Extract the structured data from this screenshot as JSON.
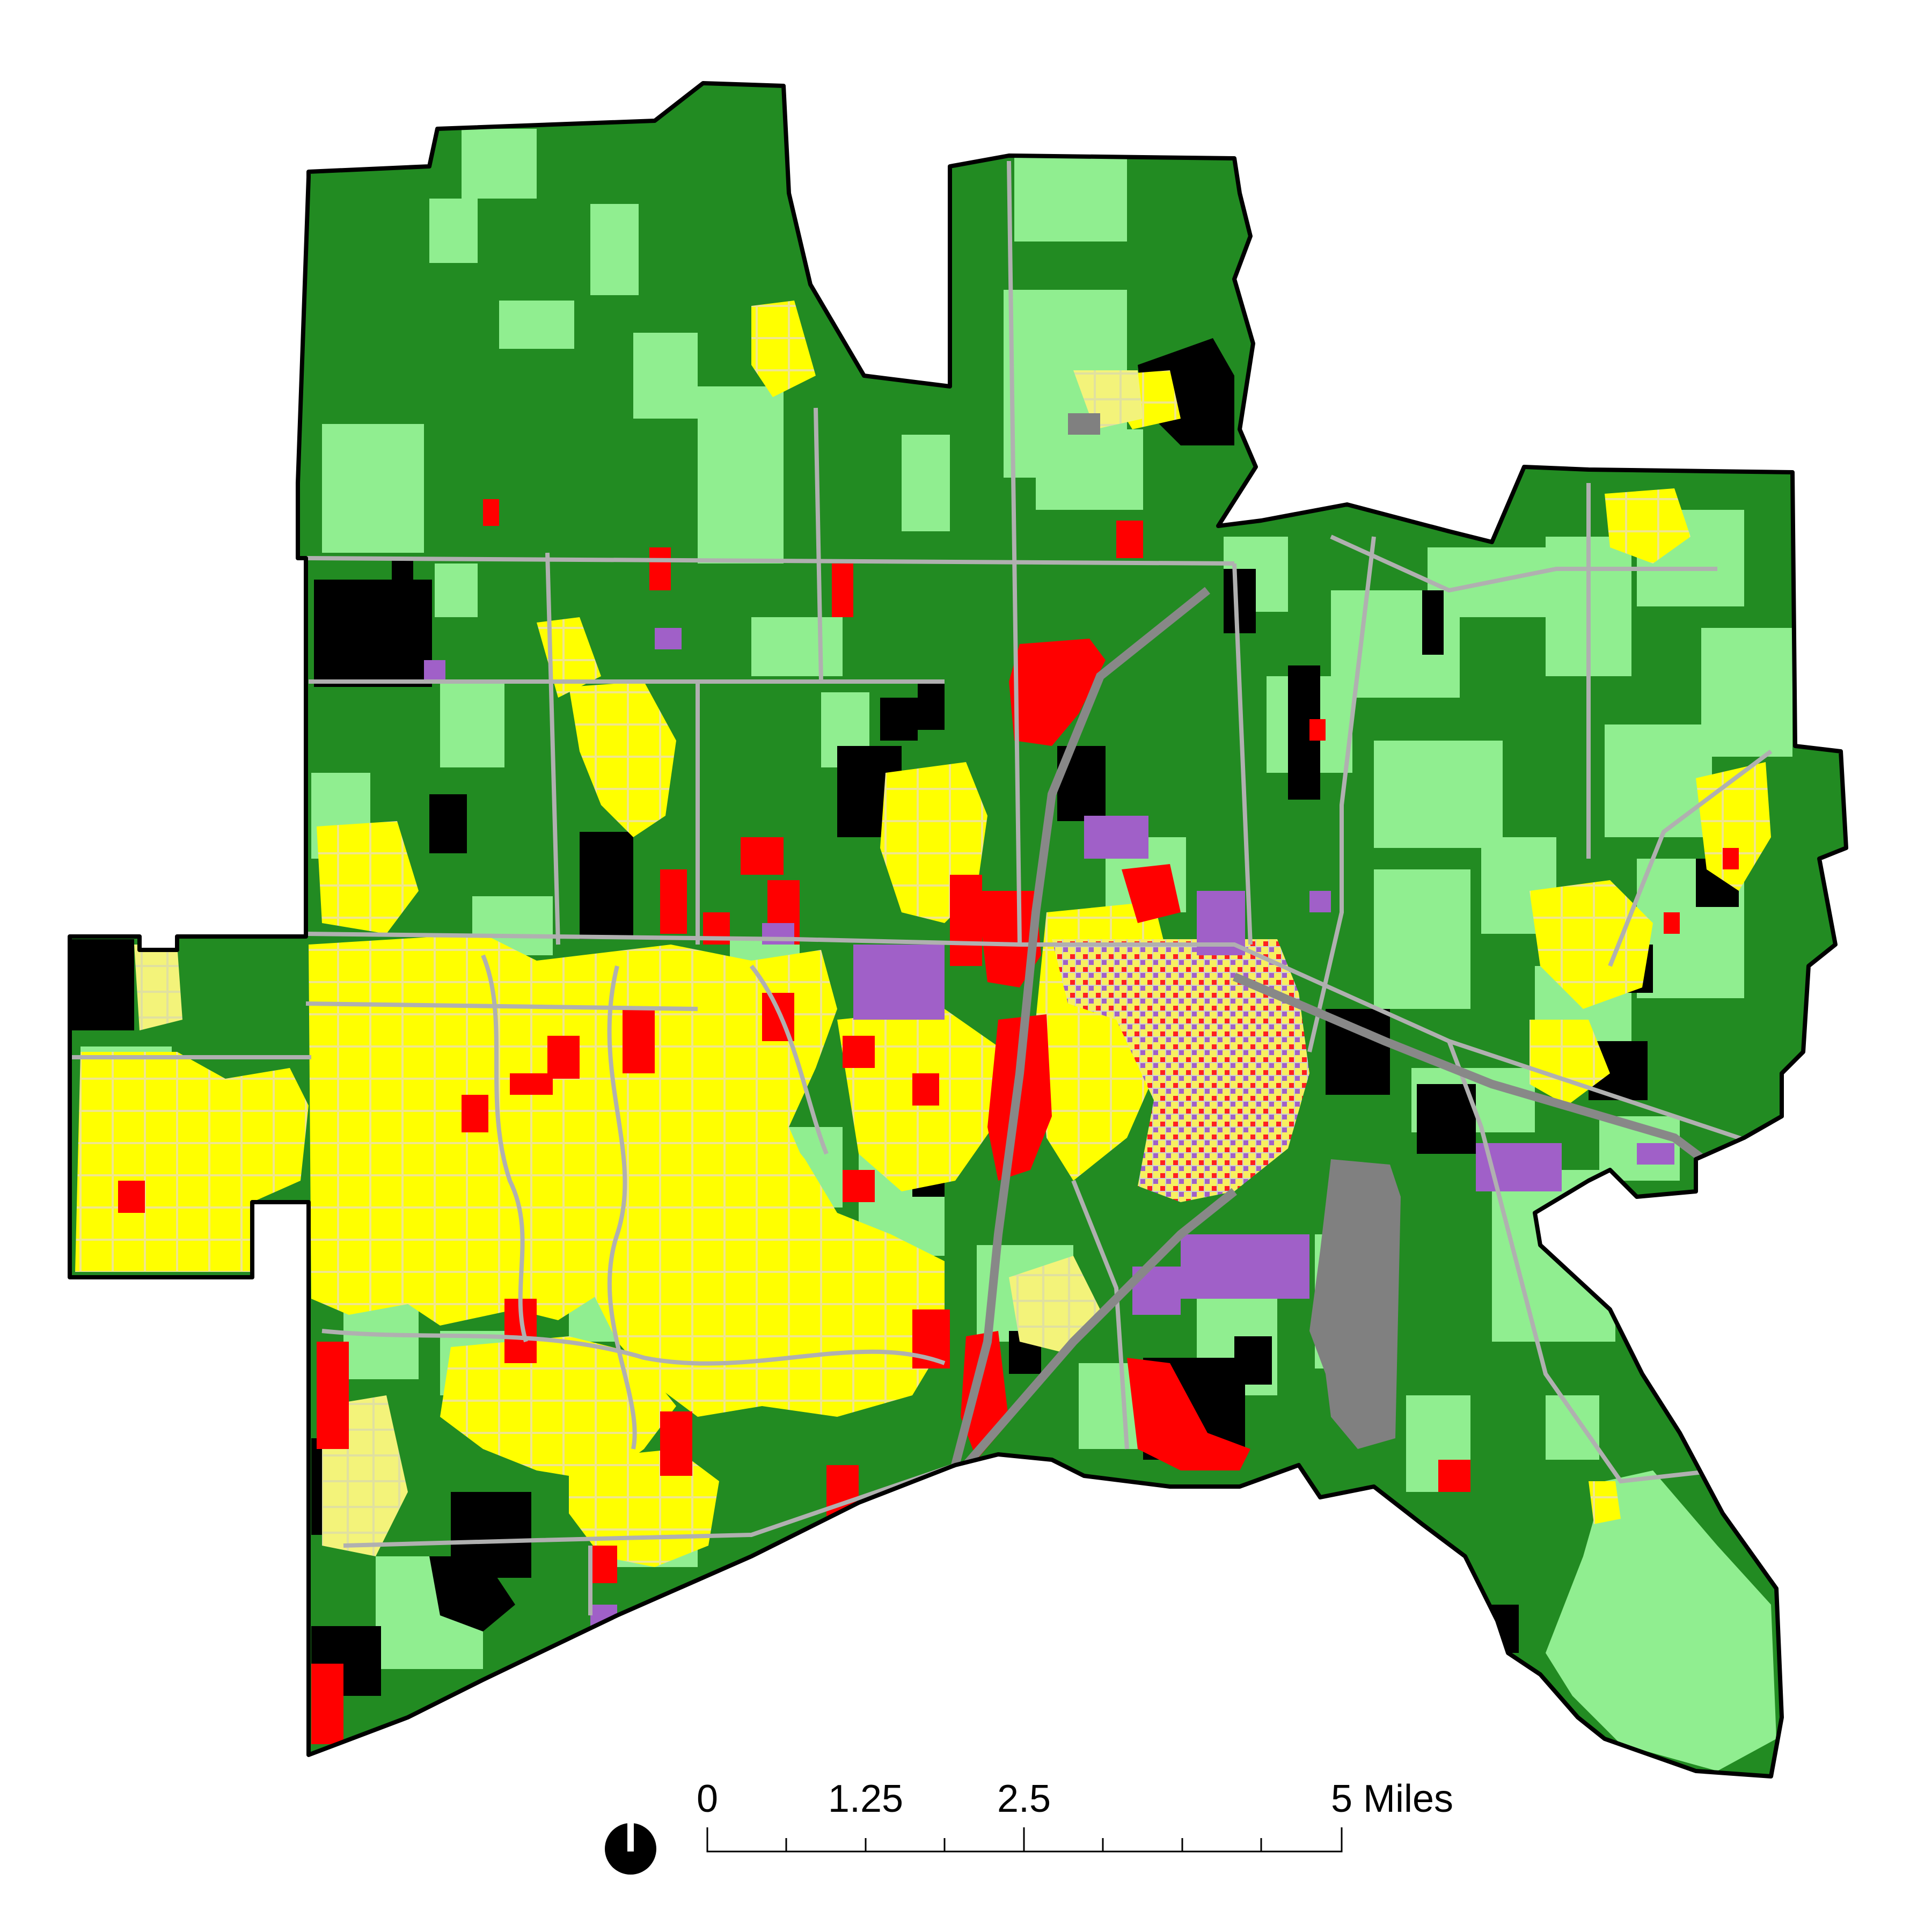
{
  "map": {
    "colors": {
      "agriculture_dark": "#228b22",
      "open_light": "#90ee90",
      "residential": "#ffff00",
      "residential_pale": "#f0f080",
      "commercial": "#ff0000",
      "industrial": "#a060c8",
      "vacant_black": "#000000",
      "utility_gray": "#808080",
      "road": "#b0b0b0",
      "boundary": "#000000"
    }
  },
  "scale_bar": {
    "label_0": "0",
    "label_1": "1.25",
    "label_2": "2.5",
    "label_3": "5 Miles"
  },
  "north_arrow": {
    "icon": "north-arrow-icon"
  }
}
